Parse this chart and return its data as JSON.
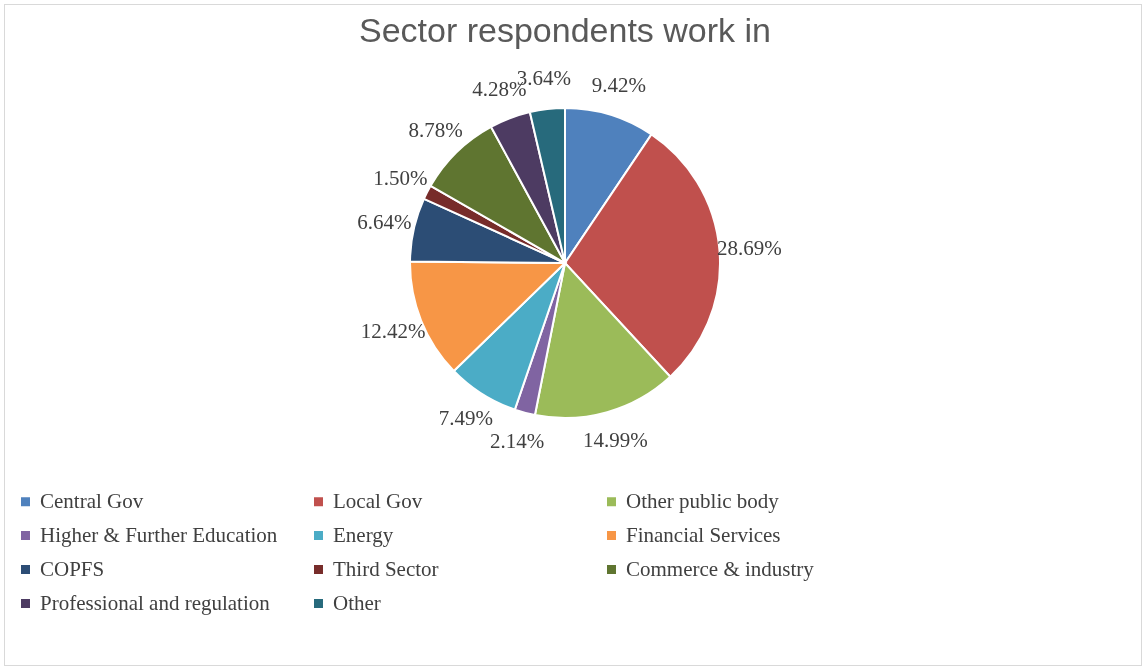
{
  "chart_data": {
    "type": "pie",
    "title": "Sector respondents work in",
    "categories": [
      "Central Gov",
      "Local Gov",
      "Other public body",
      "Higher & Further Education",
      "Energy",
      "Financial Services",
      "COPFS",
      "Third Sector",
      "Commerce & industry",
      "Professional and regulation",
      "Other"
    ],
    "values": [
      9.42,
      28.69,
      14.99,
      2.14,
      7.49,
      12.42,
      6.64,
      1.5,
      8.78,
      4.28,
      3.64
    ],
    "value_labels": [
      "9.42%",
      "28.69%",
      "14.99%",
      "2.14%",
      "7.49%",
      "12.42%",
      "6.64%",
      "1.50%",
      "8.78%",
      "4.28%",
      "3.64%"
    ],
    "colors": [
      "#4f81bd",
      "#c0504d",
      "#9bbb59",
      "#8064a2",
      "#4bacc6",
      "#f79646",
      "#2c4d75",
      "#772c2a",
      "#5f7530",
      "#4d3b62",
      "#276a7c"
    ],
    "legend": "bottom"
  }
}
